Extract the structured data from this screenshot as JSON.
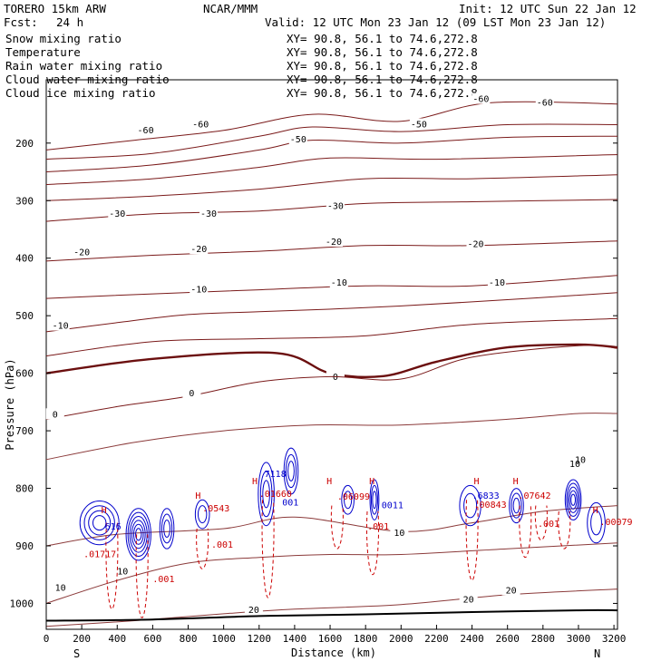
{
  "header": {
    "model": "TORERO  15km ARW",
    "center": "NCAR/MMM",
    "init": "Init: 12 UTC Sun 22 Jan 12",
    "fcst_label": "Fcst:",
    "fcst_value": "24 h",
    "valid": "Valid: 12 UTC Mon 23 Jan 12 (09 LST Mon 23 Jan 12)"
  },
  "legend": [
    {
      "name": "Snow mixing ratio",
      "color": "#000000",
      "xy": "XY=  90.8, 56.1 to  74.6,272.8"
    },
    {
      "name": "Temperature",
      "color": "#cc0000",
      "xy": "XY=  90.8, 56.1 to  74.6,272.8"
    },
    {
      "name": "Rain water mixing ratio",
      "color": "#cc0000",
      "xy": "XY=  90.8, 56.1 to  74.6,272.8"
    },
    {
      "name": "Cloud water mixing ratio",
      "color": "#0000cc",
      "xy": "XY=  90.8, 56.1 to  74.6,272.8"
    },
    {
      "name": "Cloud ice mixing ratio",
      "color": "#000000",
      "xy": "XY=  90.8, 56.1 to  74.6,272.8"
    }
  ],
  "colors": {
    "temperature": "#7a1a1a",
    "freezing": "#6b0f0f",
    "snow": "#8b3a3a",
    "rain": "#cc0000",
    "cloud_water": "#0000cc",
    "cloud_ice": "#cc0000",
    "terrain": "#000000"
  },
  "chart_data": {
    "type": "contour",
    "xlabel": "Distance (km)",
    "ylabel": "Pressure (hPa)",
    "x_start_label": "S",
    "x_end_label": "N",
    "xlim": [
      0,
      3220
    ],
    "ylim": [
      1045,
      90
    ],
    "x_ticks": [
      0,
      200,
      400,
      600,
      800,
      1000,
      1200,
      1400,
      1600,
      1800,
      2000,
      2200,
      2400,
      2600,
      2800,
      3000,
      3200
    ],
    "y_ticks": [
      200,
      300,
      400,
      500,
      600,
      700,
      800,
      900,
      1000
    ],
    "temperature_contours": [
      {
        "label": "-60",
        "labels_at": [
          [
            560,
            178
          ],
          [
            870,
            168
          ],
          [
            2450,
            124
          ],
          [
            2810,
            130
          ]
        ],
        "pts": [
          [
            0,
            212
          ],
          [
            500,
            195
          ],
          [
            1000,
            178
          ],
          [
            1500,
            150
          ],
          [
            2000,
            162
          ],
          [
            2500,
            130
          ],
          [
            3220,
            132
          ]
        ]
      },
      {
        "label": "",
        "pts": [
          [
            0,
            228
          ],
          [
            600,
            218
          ],
          [
            1200,
            188
          ],
          [
            1500,
            172
          ],
          [
            2000,
            180
          ],
          [
            2600,
            168
          ],
          [
            3220,
            168
          ]
        ]
      },
      {
        "label": "-50",
        "labels_at": [
          [
            1420,
            194
          ],
          [
            2100,
            168
          ]
        ],
        "pts": [
          [
            0,
            250
          ],
          [
            600,
            238
          ],
          [
            1200,
            212
          ],
          [
            1500,
            195
          ],
          [
            2000,
            200
          ],
          [
            2600,
            190
          ],
          [
            3220,
            188
          ]
        ]
      },
      {
        "label": "",
        "pts": [
          [
            0,
            272
          ],
          [
            600,
            262
          ],
          [
            1200,
            242
          ],
          [
            1600,
            226
          ],
          [
            2200,
            228
          ],
          [
            3220,
            220
          ]
        ]
      },
      {
        "label": "",
        "pts": [
          [
            0,
            300
          ],
          [
            600,
            292
          ],
          [
            1200,
            280
          ],
          [
            1800,
            262
          ],
          [
            2400,
            262
          ],
          [
            3220,
            255
          ]
        ]
      },
      {
        "label": "-30",
        "labels_at": [
          [
            400,
            323
          ],
          [
            915,
            323
          ],
          [
            1630,
            310
          ]
        ],
        "pts": [
          [
            0,
            336
          ],
          [
            600,
            323
          ],
          [
            1200,
            318
          ],
          [
            1800,
            305
          ],
          [
            2400,
            302
          ],
          [
            3220,
            298
          ]
        ]
      },
      {
        "label": "-20",
        "labels_at": [
          [
            200,
            390
          ],
          [
            860,
            385
          ],
          [
            1620,
            372
          ],
          [
            2420,
            376
          ]
        ],
        "pts": [
          [
            0,
            405
          ],
          [
            600,
            395
          ],
          [
            1200,
            388
          ],
          [
            1800,
            378
          ],
          [
            2400,
            378
          ],
          [
            3220,
            370
          ]
        ]
      },
      {
        "label": "-10",
        "labels_at": [
          [
            860,
            455
          ],
          [
            1650,
            443
          ],
          [
            2540,
            443
          ]
        ],
        "pts": [
          [
            0,
            470
          ],
          [
            600,
            462
          ],
          [
            1200,
            455
          ],
          [
            1800,
            448
          ],
          [
            2400,
            448
          ],
          [
            3220,
            430
          ]
        ]
      },
      {
        "label": "-10",
        "labels_at": [
          [
            80,
            518
          ]
        ],
        "pts": [
          [
            0,
            528
          ],
          [
            400,
            512
          ],
          [
            800,
            498
          ],
          [
            1200,
            493
          ],
          [
            1800,
            486
          ],
          [
            2400,
            476
          ],
          [
            3220,
            460
          ]
        ]
      },
      {
        "label": "",
        "pts": [
          [
            0,
            570
          ],
          [
            600,
            545
          ],
          [
            1200,
            540
          ],
          [
            1800,
            535
          ],
          [
            2400,
            515
          ],
          [
            3220,
            505
          ]
        ]
      },
      {
        "label": "0",
        "freezing": true,
        "labels_at": [
          [
            1630,
            607
          ]
        ],
        "pts": [
          [
            0,
            600
          ],
          [
            600,
            575
          ],
          [
            1300,
            565
          ],
          [
            1600,
            600
          ],
          [
            1900,
            605
          ],
          [
            2200,
            580
          ],
          [
            2600,
            555
          ],
          [
            3000,
            550
          ],
          [
            3220,
            555
          ]
        ]
      },
      {
        "label": "0",
        "labels_at": [
          [
            50,
            672
          ],
          [
            820,
            635
          ]
        ],
        "pts": [
          [
            0,
            680
          ],
          [
            400,
            658
          ],
          [
            800,
            640
          ],
          [
            1200,
            615
          ],
          [
            1600,
            606
          ],
          [
            2000,
            610
          ],
          [
            2400,
            572
          ],
          [
            3000,
            552
          ],
          [
            3220,
            557
          ]
        ]
      }
    ],
    "upper_level_contours": [
      {
        "pts": [
          [
            0,
            750
          ],
          [
            500,
            720
          ],
          [
            1000,
            700
          ],
          [
            1500,
            690
          ],
          [
            2000,
            690
          ],
          [
            2600,
            680
          ],
          [
            3000,
            670
          ],
          [
            3220,
            670
          ]
        ]
      }
    ],
    "warm_contours": [
      {
        "label": "10",
        "labels_at": [
          [
            1990,
            878
          ],
          [
            2980,
            758
          ]
        ],
        "pts": [
          [
            0,
            900
          ],
          [
            400,
            880
          ],
          [
            1000,
            870
          ],
          [
            1400,
            850
          ],
          [
            2000,
            875
          ],
          [
            2400,
            860
          ],
          [
            2800,
            840
          ],
          [
            3220,
            830
          ]
        ]
      },
      {
        "label": "10",
        "labels_at": [
          [
            80,
            973
          ]
        ],
        "pts": [
          [
            0,
            1000
          ],
          [
            400,
            960
          ],
          [
            800,
            930
          ],
          [
            1200,
            920
          ],
          [
            1600,
            915
          ],
          [
            2000,
            915
          ],
          [
            2600,
            905
          ],
          [
            3220,
            895
          ]
        ]
      },
      {
        "label": "20",
        "labels_at": [
          [
            2380,
            994
          ],
          [
            2620,
            978
          ],
          [
            1170,
            1012
          ]
        ],
        "pts": [
          [
            0,
            1040
          ],
          [
            500,
            1030
          ],
          [
            1000,
            1018
          ],
          [
            1400,
            1010
          ],
          [
            2000,
            1002
          ],
          [
            2600,
            985
          ],
          [
            3220,
            975
          ]
        ]
      }
    ],
    "cloud_water_cells": [
      {
        "x": 300,
        "y": 860,
        "rx": 110,
        "ry": 38,
        "n": 4
      },
      {
        "x": 520,
        "y": 880,
        "rx": 70,
        "ry": 45,
        "n": 6
      },
      {
        "x": 680,
        "y": 870,
        "rx": 40,
        "ry": 35,
        "n": 3
      },
      {
        "x": 880,
        "y": 845,
        "rx": 40,
        "ry": 25,
        "n": 2
      },
      {
        "x": 1240,
        "y": 810,
        "rx": 45,
        "ry": 55,
        "n": 3
      },
      {
        "x": 1380,
        "y": 770,
        "rx": 40,
        "ry": 40,
        "n": 3
      },
      {
        "x": 1700,
        "y": 820,
        "rx": 35,
        "ry": 25,
        "n": 2
      },
      {
        "x": 1850,
        "y": 820,
        "rx": 25,
        "ry": 35,
        "n": 3
      },
      {
        "x": 2390,
        "y": 830,
        "rx": 60,
        "ry": 35,
        "n": 2
      },
      {
        "x": 2650,
        "y": 830,
        "rx": 40,
        "ry": 30,
        "n": 3
      },
      {
        "x": 2970,
        "y": 820,
        "rx": 45,
        "ry": 35,
        "n": 5
      },
      {
        "x": 3100,
        "y": 860,
        "rx": 50,
        "ry": 35,
        "n": 2
      }
    ],
    "rain_streaks": [
      {
        "x": 370,
        "top": 860,
        "bottom": 1010
      },
      {
        "x": 540,
        "top": 880,
        "bottom": 1025
      },
      {
        "x": 880,
        "top": 870,
        "bottom": 940
      },
      {
        "x": 1250,
        "top": 820,
        "bottom": 990
      },
      {
        "x": 1640,
        "top": 830,
        "bottom": 905
      },
      {
        "x": 1840,
        "top": 840,
        "bottom": 950
      },
      {
        "x": 2400,
        "top": 820,
        "bottom": 960
      },
      {
        "x": 2700,
        "top": 830,
        "bottom": 920
      },
      {
        "x": 2790,
        "top": 830,
        "bottom": 890
      },
      {
        "x": 2920,
        "top": 840,
        "bottom": 905
      }
    ],
    "annotations": [
      {
        "text": "H",
        "x": 310,
        "y": 843,
        "color": "#cc0000"
      },
      {
        "text": "616",
        "x": 330,
        "y": 872,
        "color": "#0000cc"
      },
      {
        "text": ".01717",
        "x": 210,
        "y": 920,
        "color": "#cc0000"
      },
      {
        "text": "10",
        "x": 400,
        "y": 950,
        "color": "#000000"
      },
      {
        "text": ".001",
        "x": 600,
        "y": 963,
        "color": "#cc0000"
      },
      {
        "text": ".001",
        "x": 930,
        "y": 903,
        "color": "#cc0000"
      },
      {
        "text": "H",
        "x": 840,
        "y": 818,
        "color": "#cc0000"
      },
      {
        "text": ".0543",
        "x": 880,
        "y": 840,
        "color": "#cc0000"
      },
      {
        "text": "H",
        "x": 1160,
        "y": 793,
        "color": "#cc0000"
      },
      {
        "text": "7118",
        "x": 1230,
        "y": 780,
        "color": "#0000cc"
      },
      {
        "text": ".01660",
        "x": 1200,
        "y": 815,
        "color": "#cc0000"
      },
      {
        "text": "001",
        "x": 1330,
        "y": 830,
        "color": "#0000cc"
      },
      {
        "text": "H",
        "x": 1580,
        "y": 793,
        "color": "#cc0000"
      },
      {
        "text": ".06099",
        "x": 1640,
        "y": 820,
        "color": "#cc0000"
      },
      {
        "text": "H",
        "x": 1820,
        "y": 793,
        "color": "#cc0000"
      },
      {
        "text": "0011",
        "x": 1890,
        "y": 835,
        "color": "#0000cc"
      },
      {
        "text": ".001",
        "x": 1810,
        "y": 872,
        "color": "#cc0000"
      },
      {
        "text": "H",
        "x": 2410,
        "y": 793,
        "color": "#cc0000"
      },
      {
        "text": ".6833",
        "x": 2400,
        "y": 818,
        "color": "#0000cc"
      },
      {
        "text": ".00843",
        "x": 2410,
        "y": 834,
        "color": "#cc0000"
      },
      {
        "text": "H",
        "x": 2630,
        "y": 793,
        "color": "#cc0000"
      },
      {
        "text": ".07642",
        "x": 2660,
        "y": 818,
        "color": "#cc0000"
      },
      {
        "text": ".001",
        "x": 2770,
        "y": 867,
        "color": "#cc0000"
      },
      {
        "text": "H",
        "x": 3080,
        "y": 843,
        "color": "#cc0000"
      },
      {
        "text": ".00079",
        "x": 3120,
        "y": 864,
        "color": "#cc0000"
      },
      {
        "text": "10",
        "x": 2980,
        "y": 756,
        "color": "#000000"
      }
    ],
    "terrain_line": [
      [
        0,
        1030
      ],
      [
        600,
        1028
      ],
      [
        1200,
        1022
      ],
      [
        1800,
        1019
      ],
      [
        2400,
        1015
      ],
      [
        3000,
        1012
      ],
      [
        3220,
        1012
      ]
    ]
  }
}
